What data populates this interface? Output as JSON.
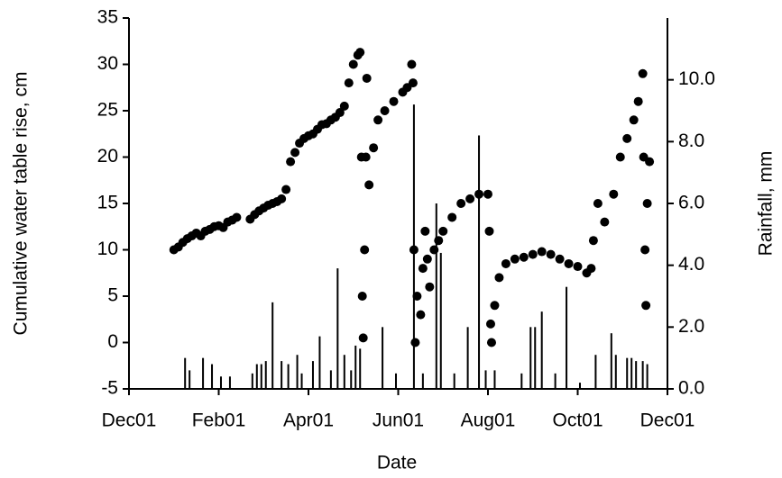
{
  "chart_data": {
    "type": "scatter",
    "x_label": "Date",
    "y_label": "Cumulative water table rise, cm",
    "y2_label": "Rainfall, mm",
    "xlim": [
      0,
      12
    ],
    "xticks": [
      {
        "value": 0,
        "label": "Dec01"
      },
      {
        "value": 2,
        "label": "Feb01"
      },
      {
        "value": 4,
        "label": "Apr01"
      },
      {
        "value": 6,
        "label": "Jun01"
      },
      {
        "value": 8,
        "label": "Aug01"
      },
      {
        "value": 10,
        "label": "Oct01"
      },
      {
        "value": 12,
        "label": "Dec01"
      }
    ],
    "ylim": [
      -5,
      35
    ],
    "yticks": [
      -5,
      0,
      5,
      10,
      15,
      20,
      25,
      30,
      35
    ],
    "y2lim": [
      0,
      12
    ],
    "y2ticks": [
      {
        "value": 0,
        "label": "0.0"
      },
      {
        "value": 2,
        "label": "2.0"
      },
      {
        "value": 4,
        "label": "4.0"
      },
      {
        "value": 6,
        "label": "6.0"
      },
      {
        "value": 8,
        "label": "8.0"
      },
      {
        "value": 10,
        "label": "10.0"
      }
    ],
    "grid": false,
    "series": [
      {
        "type": "scatter",
        "color": "#000000",
        "x": [
          1.0,
          1.1,
          1.2,
          1.3,
          1.4,
          1.5,
          1.6,
          1.7,
          1.8,
          1.9,
          2.0,
          2.1,
          2.2,
          2.3,
          2.4,
          2.7,
          2.8,
          2.9,
          3.0,
          3.1,
          3.2,
          3.3,
          3.4,
          3.5,
          3.6,
          3.7,
          3.8,
          3.9,
          4.0,
          4.1,
          4.2,
          4.3,
          4.4,
          4.5,
          4.6,
          4.7,
          4.8,
          4.9,
          5.0,
          5.1,
          5.15,
          5.18,
          5.2,
          5.22,
          5.25,
          5.28,
          5.3,
          5.35,
          5.45,
          5.55,
          5.7,
          5.9,
          6.1,
          6.2,
          6.3,
          6.33,
          6.35,
          6.38,
          6.42,
          6.5,
          6.55,
          6.6,
          6.65,
          6.7,
          6.8,
          6.9,
          7.0,
          7.2,
          7.4,
          7.6,
          7.8,
          8.0,
          8.03,
          8.06,
          8.08,
          8.15,
          8.25,
          8.4,
          8.6,
          8.8,
          9.0,
          9.2,
          9.4,
          9.6,
          9.8,
          10.0,
          10.2,
          10.3,
          10.35,
          10.45,
          10.6,
          10.8,
          10.95,
          11.1,
          11.25,
          11.35,
          11.45,
          11.47,
          11.5,
          11.52,
          11.55,
          11.6
        ],
        "values": [
          10,
          10.3,
          10.8,
          11.2,
          11.5,
          11.8,
          11.5,
          12,
          12.2,
          12.5,
          12.6,
          12.4,
          13,
          13.2,
          13.5,
          13.3,
          13.8,
          14.2,
          14.5,
          14.8,
          15,
          15.2,
          15.5,
          16.5,
          19.5,
          20.5,
          21.5,
          22,
          22.3,
          22.5,
          23,
          23.5,
          23.6,
          24,
          24.3,
          24.8,
          25.5,
          28,
          30,
          31,
          31.3,
          20,
          5,
          0.5,
          10,
          20,
          28.5,
          17,
          21,
          24,
          25,
          26,
          27,
          27.5,
          30,
          28,
          10,
          0,
          5,
          3,
          8,
          12,
          9,
          6,
          10,
          11,
          12,
          13.5,
          15,
          15.5,
          16,
          16,
          12,
          2,
          0,
          4,
          7,
          8.5,
          9,
          9.2,
          9.5,
          9.8,
          9.5,
          9,
          8.5,
          8.2,
          7.5,
          8,
          11,
          15,
          13,
          16,
          20,
          22,
          24,
          26,
          29,
          20,
          10,
          4,
          15,
          19.5
        ]
      },
      {
        "type": "bar",
        "axis": "y2",
        "color": "#000000",
        "x": [
          1.25,
          1.35,
          1.65,
          1.85,
          2.05,
          2.25,
          2.75,
          2.85,
          2.95,
          3.05,
          3.2,
          3.4,
          3.55,
          3.75,
          3.85,
          4.1,
          4.25,
          4.5,
          4.65,
          4.8,
          4.95,
          5.05,
          5.15,
          5.65,
          5.95,
          6.35,
          6.55,
          6.85,
          6.95,
          7.25,
          7.55,
          7.8,
          7.95,
          8.15,
          8.75,
          8.95,
          9.05,
          9.2,
          9.5,
          9.75,
          10.05,
          10.4,
          10.75,
          10.85,
          11.1,
          11.2,
          11.3,
          11.45,
          11.55
        ],
        "values": [
          1.0,
          0.6,
          1.0,
          0.8,
          0.4,
          0.4,
          0.5,
          0.8,
          0.8,
          0.9,
          2.8,
          0.9,
          0.8,
          1.1,
          0.5,
          0.9,
          1.7,
          0.6,
          3.9,
          1.1,
          0.6,
          1.4,
          1.3,
          2.0,
          0.5,
          9.2,
          0.5,
          6.0,
          4.4,
          0.5,
          2.0,
          8.2,
          0.6,
          0.6,
          0.5,
          2.0,
          2.0,
          2.5,
          0.5,
          3.3,
          0.2,
          1.1,
          1.8,
          1.1,
          1.0,
          1.0,
          0.9,
          0.9,
          0.8
        ]
      }
    ]
  }
}
